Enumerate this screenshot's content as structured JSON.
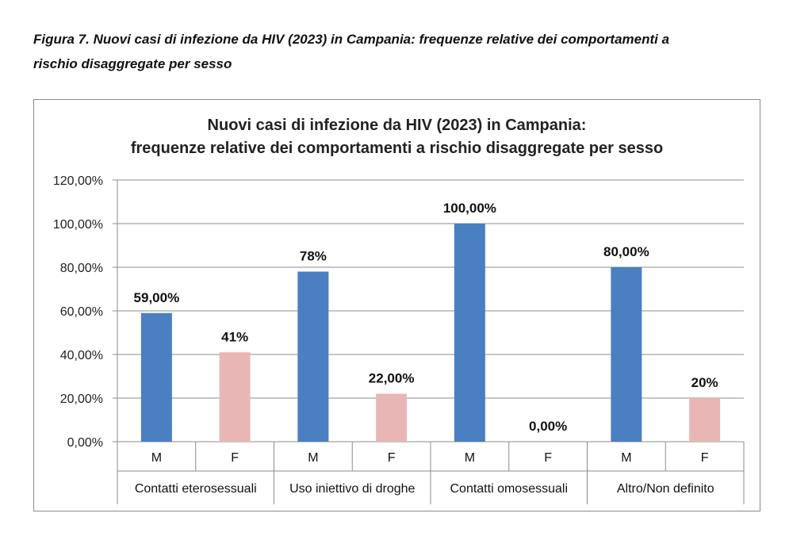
{
  "caption": {
    "line1": "Figura 7.  Nuovi casi di infezione da HIV (2023) in Campania: frequenze relative dei comportamenti a",
    "line2": "rischio disaggregate per sesso"
  },
  "chart_data": {
    "type": "bar",
    "title_lines": [
      "Nuovi casi di infezione da HIV (2023) in Campania:",
      "frequenze relative  dei comportamenti a rischio disaggregate per sesso"
    ],
    "ylim": [
      0,
      120
    ],
    "yticks": [
      0,
      20,
      40,
      60,
      80,
      100,
      120
    ],
    "ytick_labels": [
      "0,00%",
      "20,00%",
      "40,00%",
      "60,00%",
      "80,00%",
      "100,00%",
      "120,00%"
    ],
    "grid": true,
    "legend": "none",
    "groups": [
      "Contatti eterosessuali",
      "Uso iniettivo di droghe",
      "Contatti omosessuali",
      "Altro/Non definito"
    ],
    "sub_categories": [
      "M",
      "F"
    ],
    "bars": [
      {
        "group": "Contatti eterosessuali",
        "sex": "M",
        "value": 59,
        "label": "59,00%"
      },
      {
        "group": "Contatti eterosessuali",
        "sex": "F",
        "value": 41,
        "label": "41%"
      },
      {
        "group": "Uso iniettivo di droghe",
        "sex": "M",
        "value": 78,
        "label": "78%"
      },
      {
        "group": "Uso iniettivo di droghe",
        "sex": "F",
        "value": 22,
        "label": "22,00%"
      },
      {
        "group": "Contatti omosessuali",
        "sex": "M",
        "value": 100,
        "label": "100,00%"
      },
      {
        "group": "Contatti omosessuali",
        "sex": "F",
        "value": 0,
        "label": "0,00%"
      },
      {
        "group": "Altro/Non definito",
        "sex": "M",
        "value": 80,
        "label": "80,00%"
      },
      {
        "group": "Altro/Non definito",
        "sex": "F",
        "value": 20,
        "label": "20%"
      }
    ],
    "colors": {
      "M": "#4a7fc1",
      "F": "#e8b7b5",
      "grid": "#8c8c8c",
      "axis": "#8c8c8c"
    }
  }
}
